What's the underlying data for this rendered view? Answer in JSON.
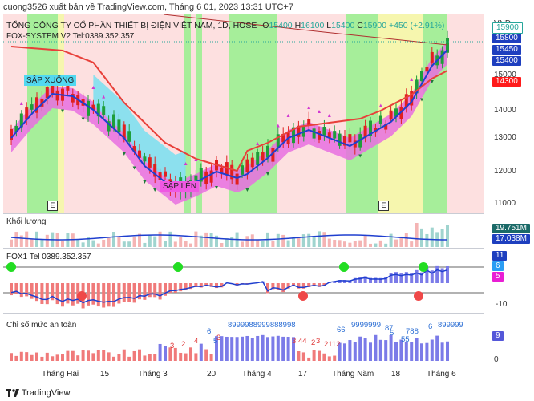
{
  "header": {
    "published": "cuong3526 xuất bản về TradingView.com, Tháng 6 01, 2023 13:31 UTC+7"
  },
  "main_chart": {
    "title": "TỔNG CÔNG TY CỔ PHẦN THIẾT BỊ ĐIỆN VIỆT NAM, 1D, HOSE",
    "ohlc": {
      "o_label": "O",
      "o": "15400",
      "h_label": "H",
      "h": "16100",
      "l_label": "L",
      "l": "15400",
      "c_label": "C",
      "c": "15900",
      "change": "+450 (+2.91%)"
    },
    "indicator_label": "FOX-SYSTEM V2 Tel:0389.352.357",
    "currency": "VND",
    "price_ticks": [
      "16000",
      "15000",
      "14000",
      "13000",
      "12000",
      "11000"
    ],
    "price_tags": [
      {
        "value": "15900",
        "bg": "#ffffff",
        "fg": "#26a69a"
      },
      {
        "value": "15800",
        "bg": "#1e3fbf"
      },
      {
        "value": "15450",
        "bg": "#1e3fbf"
      },
      {
        "value": "15400",
        "bg": "#1e3fbf"
      },
      {
        "value": "14300",
        "bg": "#ff1a1a"
      }
    ],
    "callout_down": "SẬP XUỐNG",
    "callout_up": "SẬP LÊN",
    "event_markers": [
      "E",
      "E"
    ]
  },
  "volume_panel": {
    "label": "Khối lượng",
    "tags": [
      {
        "value": "19.751M",
        "bg": "#1b6a68"
      },
      {
        "value": "17.038M",
        "bg": "#1e3fbf"
      }
    ]
  },
  "fox1_panel": {
    "label": "FOX1 Tel 0389.352.357",
    "tags": [
      {
        "value": "11",
        "bg": "#1e3fbf"
      },
      {
        "value": "6",
        "bg": "#2a9df4"
      },
      {
        "value": "5",
        "bg": "#e91ed4"
      }
    ],
    "ticks": [
      "-10"
    ]
  },
  "safety_panel": {
    "label": "Chỉ số mức an toàn",
    "tag": {
      "value": "9",
      "bg": "#5457d9"
    },
    "ticks": [
      "0"
    ],
    "annotations": [
      {
        "text": "6",
        "color": "#2a6dd4"
      },
      {
        "text": "5",
        "color": "#2a6dd4"
      },
      {
        "text": "3",
        "color": "#e03a3a"
      },
      {
        "text": "2",
        "color": "#e03a3a"
      },
      {
        "text": "4",
        "color": "#e03a3a"
      },
      {
        "text": "3",
        "color": "#e03a3a"
      },
      {
        "text": "8999988999888998",
        "color": "#2a6dd4"
      },
      {
        "text": "3",
        "color": "#e03a3a"
      },
      {
        "text": "44",
        "color": "#e03a3a"
      },
      {
        "text": "2",
        "color": "#e03a3a"
      },
      {
        "text": "3",
        "color": "#e03a3a"
      },
      {
        "text": "2112",
        "color": "#e03a3a"
      },
      {
        "text": "66",
        "color": "#2a6dd4"
      },
      {
        "text": "9999999",
        "color": "#2a6dd4"
      },
      {
        "text": "87",
        "color": "#2a6dd4"
      },
      {
        "text": "5",
        "color": "#2a6dd4"
      },
      {
        "text": "55",
        "color": "#2a6dd4"
      },
      {
        "text": "788",
        "color": "#2a6dd4"
      },
      {
        "text": "6",
        "color": "#2a6dd4"
      },
      {
        "text": "899999",
        "color": "#2a6dd4"
      }
    ]
  },
  "x_axis": [
    "Tháng Hai",
    "15",
    "Tháng 3",
    "20",
    "Tháng 4",
    "17",
    "Tháng Năm",
    "18",
    "Tháng 6"
  ],
  "footer": {
    "brand": "TradingView"
  }
}
